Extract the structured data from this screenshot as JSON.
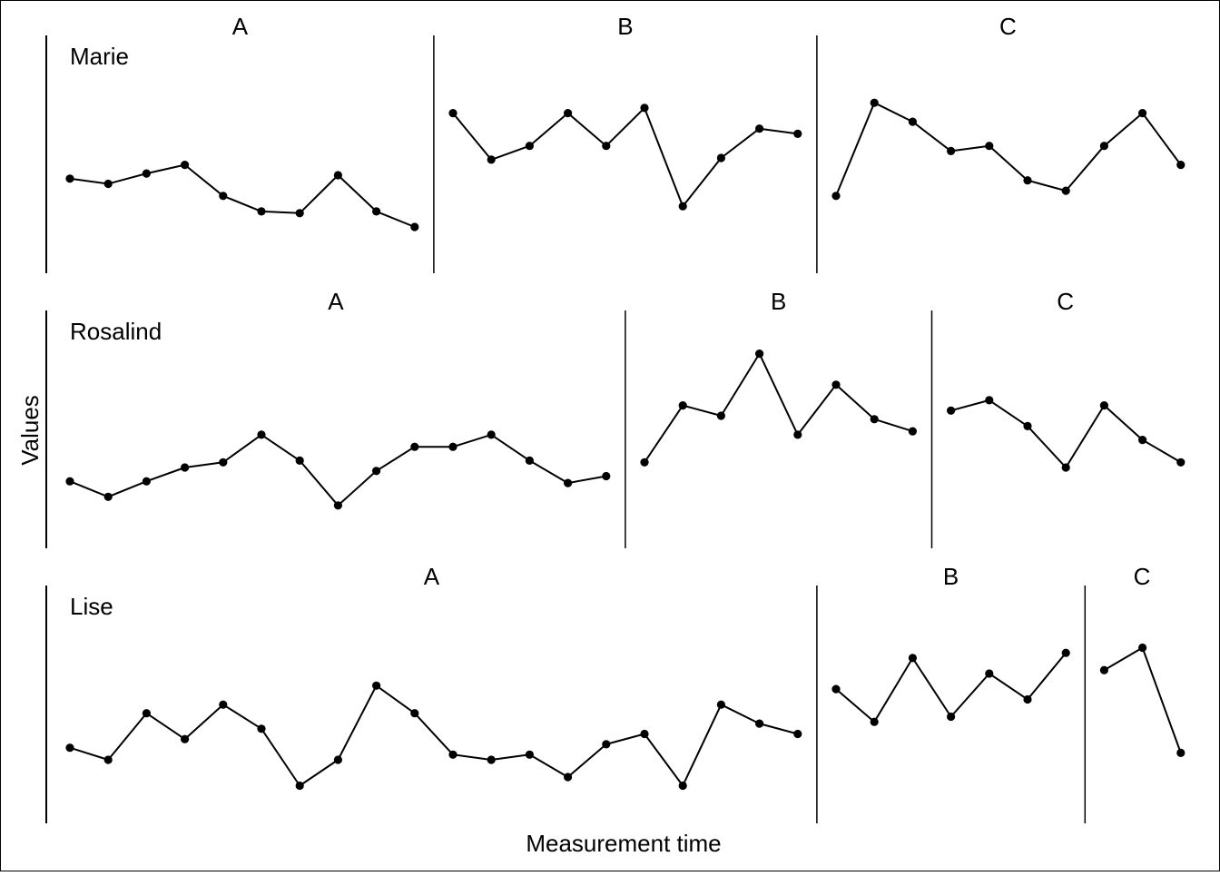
{
  "chart_data": {
    "type": "line",
    "xlabel": "Measurement time",
    "ylabel": "Values",
    "phase_labels": [
      "A",
      "B",
      "C"
    ],
    "grid": false,
    "colors": {
      "line": "#000000",
      "point": "#000000",
      "axis": "#000000",
      "border": "#000000"
    },
    "y_scale": {
      "min": 0,
      "max": 100
    },
    "rows": [
      {
        "participant": "Marie",
        "phases": [
          {
            "label": "A",
            "values": [
              38,
              35,
              41,
              46,
              28,
              19,
              18,
              40,
              19,
              10
            ]
          },
          {
            "label": "B",
            "values": [
              76,
              49,
              57,
              76,
              57,
              79,
              22,
              50,
              67,
              64
            ]
          },
          {
            "label": "C",
            "values": [
              28,
              82,
              71,
              54,
              57,
              37,
              31,
              57,
              76,
              46
            ]
          }
        ]
      },
      {
        "participant": "Rosalind",
        "phases": [
          {
            "label": "A",
            "values": [
              22,
              13,
              22,
              30,
              33,
              49,
              34,
              8,
              28,
              42,
              42,
              49,
              34,
              21,
              25
            ]
          },
          {
            "label": "B",
            "values": [
              33,
              66,
              60,
              96,
              49,
              78,
              58,
              51
            ]
          },
          {
            "label": "C",
            "values": [
              63,
              69,
              54,
              30,
              66,
              46,
              33
            ]
          }
        ]
      },
      {
        "participant": "Lise",
        "phases": [
          {
            "label": "A",
            "values": [
              27,
              20,
              47,
              32,
              52,
              38,
              5,
              20,
              63,
              47,
              23,
              20,
              23,
              10,
              29,
              35,
              5,
              52,
              41,
              35
            ]
          },
          {
            "label": "B",
            "values": [
              61,
              42,
              79,
              45,
              70,
              55,
              82
            ]
          },
          {
            "label": "C",
            "values": [
              72,
              85,
              24
            ]
          }
        ]
      }
    ]
  }
}
